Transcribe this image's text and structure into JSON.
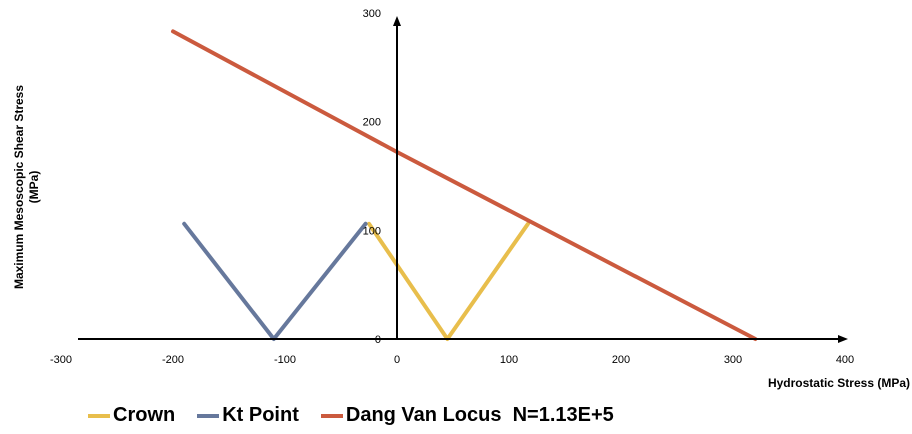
{
  "chart_data": {
    "type": "line",
    "title": "",
    "xlabel": "Hydrostatic Stress (MPa)",
    "ylabel_line1": "Maximum Mesoscopic Shear Stress",
    "ylabel_line2": "(MPa)",
    "xlim": [
      -300,
      400
    ],
    "ylim": [
      0,
      300
    ],
    "x_ticks": [
      -300,
      -200,
      -100,
      0,
      100,
      200,
      300,
      400
    ],
    "y_ticks": [
      0,
      100,
      200,
      300
    ],
    "grid": false,
    "legend_position": "bottom",
    "series": [
      {
        "name": "Crown",
        "color": "#E8BE4C",
        "points": [
          [
            -25,
            106
          ],
          [
            45,
            0
          ],
          [
            117,
            106
          ]
        ]
      },
      {
        "name": "Kt Point",
        "color": "#66789C",
        "points": [
          [
            -190,
            106
          ],
          [
            -110,
            0
          ],
          [
            -28,
            106
          ]
        ]
      },
      {
        "name": "Dang Van Locus  N=1.13E+5",
        "color": "#CB5A3E",
        "points": [
          [
            -200,
            283
          ],
          [
            0,
            172
          ],
          [
            320,
            0
          ]
        ]
      }
    ]
  }
}
